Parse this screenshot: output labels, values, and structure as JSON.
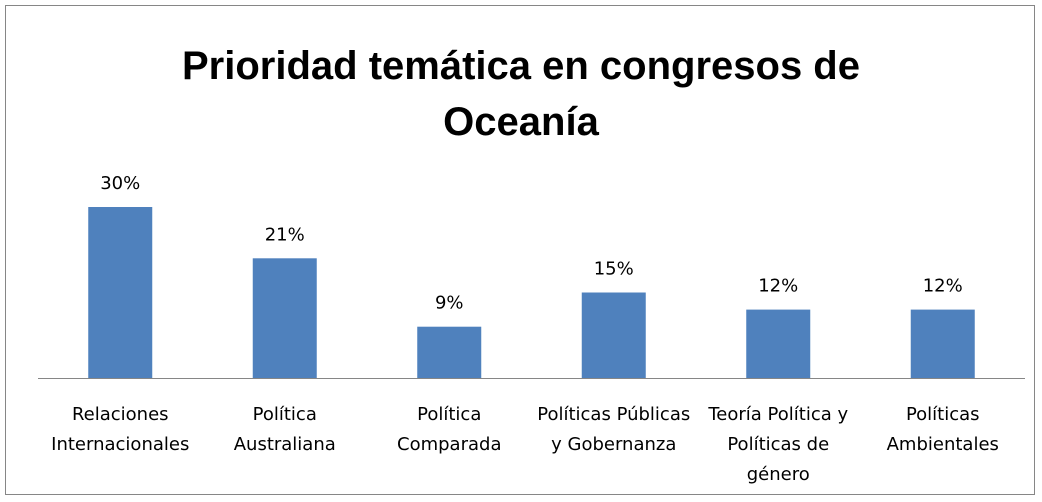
{
  "chart_data": {
    "type": "bar",
    "title": "Prioridad temática en congresos de Oceanía",
    "categories": [
      "Relaciones Internacionales",
      "Política Australiana",
      "Política Comparada",
      "Políticas Públicas y Gobernanza",
      "Teoría Política y Políticas de género",
      "Políticas Ambientales"
    ],
    "values": [
      30,
      21,
      9,
      15,
      12,
      12
    ],
    "value_labels": [
      "30%",
      "21%",
      "9%",
      "15%",
      "12%",
      "12%"
    ],
    "color": "#4f81bd"
  }
}
